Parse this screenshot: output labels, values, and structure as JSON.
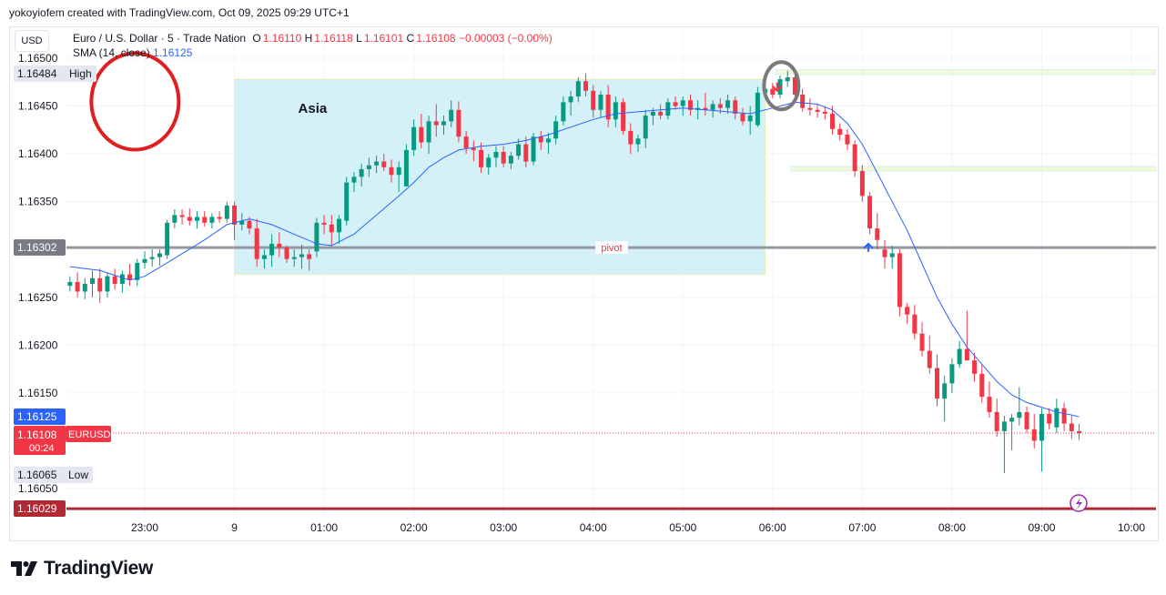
{
  "header": {
    "credit": "yokoyiofem created with TradingView.com, Oct 09, 2025 09:29 UTC+1"
  },
  "legend": {
    "symbol_line": "Euro / U.S. Dollar · 5 · Trade Nation",
    "o_label": "O",
    "o_value": "1.16110",
    "h_label": "H",
    "h_value": "1.16118",
    "l_label": "L",
    "l_value": "1.16101",
    "c_label": "C",
    "c_value": "1.16108",
    "change": "−0.00003 (−0.00%)",
    "sma_label": "SMA (14, close)",
    "sma_value": "1.16125"
  },
  "currency_button": "USD",
  "footer": {
    "brand": "TradingView"
  },
  "colors": {
    "up": "#089981",
    "down": "#f23645",
    "sma": "#2962ff",
    "asia_box": "#d4f1f7",
    "pivot_line": "#9598a1",
    "zone": "#f7fadc"
  },
  "chart_data": {
    "type": "candlestick",
    "symbol": "EURUSD",
    "timeframe": "5",
    "y_ticks": [
      "1.16500",
      "1.16450",
      "1.16400",
      "1.16350",
      "1.16250",
      "1.16200",
      "1.16150",
      "1.16050"
    ],
    "ylim": [
      1.16015,
      1.16515
    ],
    "x_ticks": [
      {
        "label": "23:00",
        "t": -60
      },
      {
        "label": "9",
        "t": 0
      },
      {
        "label": "01:00",
        "t": 60
      },
      {
        "label": "02:00",
        "t": 120
      },
      {
        "label": "03:00",
        "t": 180
      },
      {
        "label": "04:00",
        "t": 240
      },
      {
        "label": "05:00",
        "t": 300
      },
      {
        "label": "06:00",
        "t": 360
      },
      {
        "label": "07:00",
        "t": 420
      },
      {
        "label": "08:00",
        "t": 480
      },
      {
        "label": "09:00",
        "t": 540
      },
      {
        "label": "10:00",
        "t": 600
      }
    ],
    "xlim": [
      -110,
      620
    ],
    "price_labels": {
      "high_value": "1.16484",
      "high_text": "High",
      "pivot_value": "1.16302",
      "sma_value": "1.16125",
      "last_value": "1.16108",
      "last_symbol": "EURUSD",
      "countdown": "00:24",
      "low_value": "1.16065",
      "low_text": "Low",
      "support_value": "1.16029"
    },
    "annotations": {
      "asia_label": "Asia",
      "asia_box": {
        "t0": 0,
        "t1": 355,
        "p_top": 1.16478,
        "p_bottom": 1.16274
      },
      "pivot_label": "pivot",
      "pivot_price": 1.16302,
      "zone_upper": {
        "t0": 362,
        "p1": 1.16488,
        "p2": 1.16483
      },
      "zone_lower": {
        "t0": 372,
        "p1": 1.16387,
        "p2": 1.16382
      },
      "support_price": 1.16029,
      "down_arrow": {
        "t": 363,
        "p": 1.16466
      },
      "up_arrow": {
        "t": 424,
        "p": 1.16306
      },
      "red_circle": {
        "t": -75,
        "p": 1.1647
      },
      "gray_circle": {
        "t": 364,
        "p": 1.16475
      }
    },
    "candles": [
      [
        -110,
        1.16262,
        1.16272,
        1.16256,
        1.16266
      ],
      [
        -105,
        1.16266,
        1.16276,
        1.1625,
        1.16256
      ],
      [
        -100,
        1.16256,
        1.1627,
        1.16248,
        1.16264
      ],
      [
        -95,
        1.16264,
        1.16278,
        1.1625,
        1.1627
      ],
      [
        -90,
        1.1627,
        1.1628,
        1.16244,
        1.16256
      ],
      [
        -85,
        1.16256,
        1.16276,
        1.1625,
        1.16272
      ],
      [
        -80,
        1.16272,
        1.1628,
        1.16258,
        1.16264
      ],
      [
        -75,
        1.16264,
        1.16278,
        1.16255,
        1.16274
      ],
      [
        -70,
        1.16274,
        1.16285,
        1.16262,
        1.16268
      ],
      [
        -65,
        1.16268,
        1.1629,
        1.16262,
        1.16286
      ],
      [
        -60,
        1.16286,
        1.16298,
        1.1628,
        1.1629
      ],
      [
        -55,
        1.1629,
        1.163,
        1.16282,
        1.16292
      ],
      [
        -50,
        1.16292,
        1.163,
        1.16283,
        1.16296
      ],
      [
        -45,
        1.16294,
        1.16331,
        1.1629,
        1.16328
      ],
      [
        -40,
        1.16328,
        1.16342,
        1.16322,
        1.16336
      ],
      [
        -35,
        1.16336,
        1.16342,
        1.16326,
        1.16334
      ],
      [
        -30,
        1.16334,
        1.16343,
        1.16325,
        1.1633
      ],
      [
        -25,
        1.1633,
        1.1634,
        1.16322,
        1.16334
      ],
      [
        -20,
        1.16334,
        1.1634,
        1.16324,
        1.16328
      ],
      [
        -15,
        1.16328,
        1.16338,
        1.16322,
        1.16334
      ],
      [
        -10,
        1.16334,
        1.1634,
        1.16328,
        1.16332
      ],
      [
        -5,
        1.16332,
        1.1635,
        1.16328,
        1.16346
      ],
      [
        0,
        1.16346,
        1.1635,
        1.1631,
        1.16326
      ],
      [
        5,
        1.16326,
        1.16338,
        1.1632,
        1.1633
      ],
      [
        10,
        1.1633,
        1.16334,
        1.16316,
        1.16322
      ],
      [
        15,
        1.16322,
        1.16332,
        1.16282,
        1.1629
      ],
      [
        20,
        1.1629,
        1.163,
        1.1628,
        1.16294
      ],
      [
        25,
        1.16294,
        1.16316,
        1.16282,
        1.16306
      ],
      [
        30,
        1.16306,
        1.16318,
        1.16292,
        1.16302
      ],
      [
        35,
        1.16302,
        1.16304,
        1.16286,
        1.1629
      ],
      [
        40,
        1.1629,
        1.163,
        1.16282,
        1.16292
      ],
      [
        45,
        1.16292,
        1.16305,
        1.1628,
        1.16295
      ],
      [
        50,
        1.16295,
        1.163,
        1.16278,
        1.1629
      ],
      [
        55,
        1.16298,
        1.16333,
        1.16292,
        1.16328
      ],
      [
        60,
        1.16328,
        1.16336,
        1.16316,
        1.16326
      ],
      [
        65,
        1.16326,
        1.16336,
        1.16304,
        1.16318
      ],
      [
        70,
        1.16318,
        1.16336,
        1.16306,
        1.16332
      ],
      [
        75,
        1.1633,
        1.16376,
        1.16325,
        1.1637
      ],
      [
        80,
        1.1637,
        1.16381,
        1.1636,
        1.16376
      ],
      [
        85,
        1.16376,
        1.1639,
        1.16366,
        1.16384
      ],
      [
        90,
        1.16384,
        1.16396,
        1.16376,
        1.16388
      ],
      [
        95,
        1.16388,
        1.16398,
        1.1638,
        1.16392
      ],
      [
        100,
        1.16392,
        1.164,
        1.16382,
        1.16386
      ],
      [
        105,
        1.16386,
        1.16394,
        1.1637,
        1.16378
      ],
      [
        110,
        1.16378,
        1.16392,
        1.1636,
        1.16386
      ],
      [
        115,
        1.16366,
        1.1641,
        1.16366,
        1.16404
      ],
      [
        120,
        1.16404,
        1.16436,
        1.16398,
        1.16428
      ],
      [
        125,
        1.16428,
        1.16442,
        1.16406,
        1.16412
      ],
      [
        130,
        1.16412,
        1.1644,
        1.164,
        1.16434
      ],
      [
        135,
        1.16434,
        1.16452,
        1.16418,
        1.1643
      ],
      [
        140,
        1.1643,
        1.1644,
        1.1642,
        1.16434
      ],
      [
        145,
        1.16434,
        1.16456,
        1.16428,
        1.16446
      ],
      [
        150,
        1.16446,
        1.16455,
        1.16412,
        1.16418
      ],
      [
        155,
        1.16418,
        1.16424,
        1.164,
        1.16406
      ],
      [
        160,
        1.16406,
        1.16414,
        1.16392,
        1.16404
      ],
      [
        165,
        1.16404,
        1.16412,
        1.1638,
        1.16386
      ],
      [
        170,
        1.16386,
        1.164,
        1.16378,
        1.16396
      ],
      [
        175,
        1.16396,
        1.16408,
        1.16386,
        1.16402
      ],
      [
        180,
        1.16402,
        1.16408,
        1.16386,
        1.1639
      ],
      [
        185,
        1.1639,
        1.16402,
        1.16384,
        1.16398
      ],
      [
        190,
        1.16398,
        1.16416,
        1.16394,
        1.1641
      ],
      [
        195,
        1.1641,
        1.16418,
        1.16386,
        1.16392
      ],
      [
        200,
        1.16392,
        1.16422,
        1.16388,
        1.16418
      ],
      [
        205,
        1.16418,
        1.16424,
        1.16404,
        1.16412
      ],
      [
        210,
        1.16412,
        1.16422,
        1.164,
        1.16416
      ],
      [
        215,
        1.16416,
        1.1644,
        1.1641,
        1.16434
      ],
      [
        220,
        1.16434,
        1.1646,
        1.1643,
        1.16454
      ],
      [
        225,
        1.16454,
        1.16466,
        1.1644,
        1.1646
      ],
      [
        230,
        1.1646,
        1.1648,
        1.16454,
        1.16476
      ],
      [
        235,
        1.16476,
        1.16484,
        1.1646,
        1.16466
      ],
      [
        240,
        1.16466,
        1.16472,
        1.16438,
        1.16446
      ],
      [
        245,
        1.16446,
        1.16466,
        1.16438,
        1.16462
      ],
      [
        250,
        1.16462,
        1.16472,
        1.16428,
        1.16436
      ],
      [
        255,
        1.16436,
        1.1646,
        1.16428,
        1.16454
      ],
      [
        260,
        1.16454,
        1.16458,
        1.1642,
        1.16424
      ],
      [
        265,
        1.16424,
        1.16432,
        1.164,
        1.1641
      ],
      [
        270,
        1.1641,
        1.1642,
        1.16402,
        1.16416
      ],
      [
        275,
        1.16416,
        1.16446,
        1.16406,
        1.1644
      ],
      [
        280,
        1.1644,
        1.16448,
        1.1643,
        1.16444
      ],
      [
        285,
        1.16444,
        1.16452,
        1.16436,
        1.1644
      ],
      [
        290,
        1.1644,
        1.16458,
        1.16436,
        1.16454
      ],
      [
        295,
        1.16454,
        1.1646,
        1.16446,
        1.1645
      ],
      [
        300,
        1.1645,
        1.1646,
        1.1644,
        1.16456
      ],
      [
        305,
        1.16456,
        1.16462,
        1.1644,
        1.16446
      ],
      [
        310,
        1.16446,
        1.16456,
        1.16436,
        1.16448
      ],
      [
        315,
        1.16448,
        1.16464,
        1.1644,
        1.16446
      ],
      [
        320,
        1.16446,
        1.16456,
        1.16438,
        1.16452
      ],
      [
        325,
        1.16452,
        1.16458,
        1.16442,
        1.16448
      ],
      [
        330,
        1.16448,
        1.16462,
        1.16442,
        1.16456
      ],
      [
        335,
        1.16456,
        1.1646,
        1.16436,
        1.16442
      ],
      [
        340,
        1.16442,
        1.16448,
        1.1643,
        1.16434
      ],
      [
        345,
        1.16434,
        1.1645,
        1.1642,
        1.1644
      ],
      [
        350,
        1.1643,
        1.1647,
        1.16428,
        1.16464
      ],
      [
        355,
        1.16464,
        1.16472,
        1.1646,
        1.16468
      ],
      [
        360,
        1.16468,
        1.16474,
        1.16458,
        1.16462
      ],
      [
        365,
        1.16462,
        1.16482,
        1.16458,
        1.16478
      ],
      [
        370,
        1.16476,
        1.16487,
        1.1647,
        1.1648
      ],
      [
        375,
        1.1648,
        1.16488,
        1.16458,
        1.16462
      ],
      [
        380,
        1.16462,
        1.16468,
        1.16444,
        1.16448
      ],
      [
        385,
        1.16448,
        1.16458,
        1.1644,
        1.16446
      ],
      [
        390,
        1.16446,
        1.16452,
        1.16438,
        1.16444
      ],
      [
        395,
        1.16444,
        1.1645,
        1.16436,
        1.16442
      ],
      [
        400,
        1.16442,
        1.1645,
        1.1642,
        1.16426
      ],
      [
        405,
        1.16426,
        1.16432,
        1.16414,
        1.1642
      ],
      [
        410,
        1.1642,
        1.16426,
        1.16404,
        1.1641
      ],
      [
        415,
        1.1641,
        1.16414,
        1.16376,
        1.16382
      ],
      [
        420,
        1.16382,
        1.16388,
        1.1635,
        1.16356
      ],
      [
        425,
        1.16356,
        1.1636,
        1.16316,
        1.16322
      ],
      [
        430,
        1.16322,
        1.16338,
        1.163,
        1.1631
      ],
      [
        435,
        1.163,
        1.1631,
        1.1628,
        1.16292
      ],
      [
        440,
        1.16292,
        1.16304,
        1.1628,
        1.16296
      ],
      [
        445,
        1.16296,
        1.163,
        1.1623,
        1.1624
      ],
      [
        450,
        1.1624,
        1.16244,
        1.16222,
        1.16232
      ],
      [
        455,
        1.16232,
        1.16242,
        1.16206,
        1.16212
      ],
      [
        460,
        1.16212,
        1.16224,
        1.16188,
        1.16194
      ],
      [
        465,
        1.16194,
        1.1621,
        1.1617,
        1.16176
      ],
      [
        470,
        1.16176,
        1.1619,
        1.16136,
        1.16144
      ],
      [
        475,
        1.16144,
        1.16168,
        1.1612,
        1.1616
      ],
      [
        480,
        1.1616,
        1.16186,
        1.1615,
        1.1618
      ],
      [
        485,
        1.1618,
        1.16204,
        1.16176,
        1.16196
      ],
      [
        490,
        1.16196,
        1.16236,
        1.16188,
        1.16184
      ],
      [
        495,
        1.16184,
        1.16192,
        1.16162,
        1.1617
      ],
      [
        500,
        1.1617,
        1.1618,
        1.1614,
        1.16146
      ],
      [
        505,
        1.16146,
        1.16162,
        1.16124,
        1.1613
      ],
      [
        510,
        1.1613,
        1.16144,
        1.16104,
        1.1611
      ],
      [
        515,
        1.1611,
        1.16126,
        1.16066,
        1.1612
      ],
      [
        520,
        1.1612,
        1.16128,
        1.1609,
        1.16124
      ],
      [
        525,
        1.16124,
        1.16156,
        1.16116,
        1.1613
      ],
      [
        530,
        1.1613,
        1.16136,
        1.16108,
        1.16112
      ],
      [
        535,
        1.16112,
        1.16128,
        1.16092,
        1.161
      ],
      [
        540,
        1.161,
        1.16134,
        1.16068,
        1.16128
      ],
      [
        545,
        1.16128,
        1.16134,
        1.16112,
        1.16118
      ],
      [
        550,
        1.16114,
        1.16144,
        1.16108,
        1.16134
      ],
      [
        555,
        1.16134,
        1.1614,
        1.1611,
        1.16118
      ],
      [
        560,
        1.16118,
        1.16126,
        1.16102,
        1.1611
      ],
      [
        565,
        1.1611,
        1.16118,
        1.16101,
        1.16108
      ]
    ],
    "sma": [
      [
        -110,
        1.16282
      ],
      [
        -90,
        1.16278
      ],
      [
        -70,
        1.16268
      ],
      [
        -60,
        1.16272
      ],
      [
        -45,
        1.16286
      ],
      [
        -20,
        1.1631
      ],
      [
        -5,
        1.16326
      ],
      [
        10,
        1.16332
      ],
      [
        25,
        1.16326
      ],
      [
        40,
        1.16316
      ],
      [
        55,
        1.16306
      ],
      [
        65,
        1.16304
      ],
      [
        80,
        1.16316
      ],
      [
        95,
        1.16336
      ],
      [
        110,
        1.16356
      ],
      [
        120,
        1.1637
      ],
      [
        130,
        1.16386
      ],
      [
        140,
        1.16396
      ],
      [
        150,
        1.16404
      ],
      [
        165,
        1.16408
      ],
      [
        180,
        1.1641
      ],
      [
        195,
        1.16414
      ],
      [
        210,
        1.1642
      ],
      [
        225,
        1.16428
      ],
      [
        240,
        1.16436
      ],
      [
        255,
        1.16442
      ],
      [
        270,
        1.16444
      ],
      [
        285,
        1.16446
      ],
      [
        300,
        1.16448
      ],
      [
        315,
        1.16446
      ],
      [
        330,
        1.16444
      ],
      [
        345,
        1.16442
      ],
      [
        360,
        1.16448
      ],
      [
        375,
        1.16454
      ],
      [
        390,
        1.16452
      ],
      [
        400,
        1.16446
      ],
      [
        410,
        1.16432
      ],
      [
        420,
        1.1641
      ],
      [
        430,
        1.1638
      ],
      [
        440,
        1.1635
      ],
      [
        450,
        1.1632
      ],
      [
        460,
        1.16285
      ],
      [
        470,
        1.1625
      ],
      [
        480,
        1.16222
      ],
      [
        490,
        1.16198
      ],
      [
        500,
        1.1618
      ],
      [
        510,
        1.16162
      ],
      [
        520,
        1.16148
      ],
      [
        530,
        1.1614
      ],
      [
        540,
        1.16135
      ],
      [
        550,
        1.1613
      ],
      [
        560,
        1.16127
      ],
      [
        565,
        1.16125
      ]
    ]
  }
}
